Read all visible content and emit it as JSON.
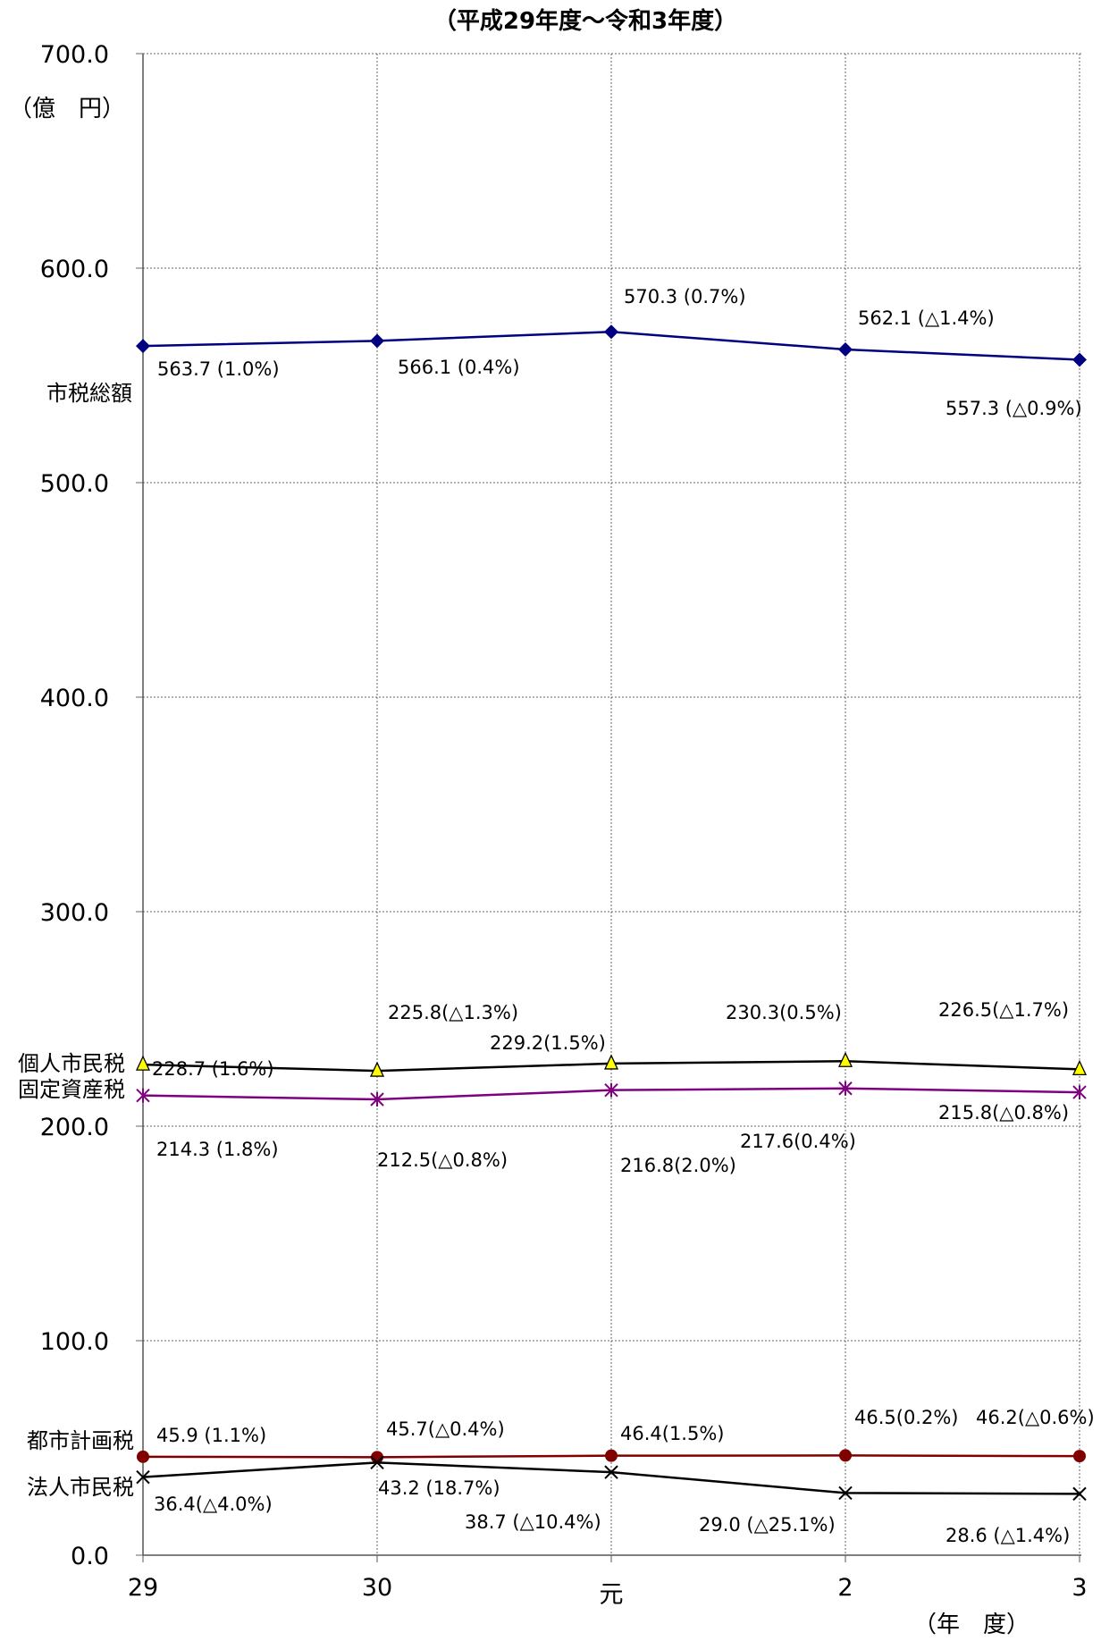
{
  "chart_data": {
    "type": "line",
    "title": "（平成29年度～令和3年度）",
    "y_unit": "（億　円）",
    "x_unit": "（年　度）",
    "ylim": [
      0,
      700
    ],
    "y_ticks": [
      "0.0",
      "100.0",
      "200.0",
      "300.0",
      "400.0",
      "500.0",
      "600.0",
      "700.0"
    ],
    "categories": [
      "29",
      "30",
      "元",
      "2",
      "3"
    ],
    "grid": true,
    "series": [
      {
        "name": "市税総額",
        "color": "#000080",
        "marker": "diamond",
        "values": [
          563.7,
          566.1,
          570.3,
          562.1,
          557.3
        ],
        "labels": [
          "563.7 (1.0%)",
          "566.1 (0.4%)",
          "570.3 (0.7%)",
          "562.1 (△1.4%)",
          "557.3 (△0.9%)"
        ]
      },
      {
        "name": "個人市民税",
        "color": "#000000",
        "marker": "triangle",
        "values": [
          228.7,
          225.8,
          229.2,
          230.3,
          226.5
        ],
        "labels": [
          "228.7 (1.6%)",
          "225.8(△1.3%)",
          "229.2(1.5%)",
          "230.3(0.5%)",
          "226.5(△1.7%)"
        ]
      },
      {
        "name": "固定資産税",
        "color": "#800080",
        "marker": "asterisk",
        "values": [
          214.3,
          212.5,
          216.8,
          217.6,
          215.8
        ],
        "labels": [
          "214.3 (1.8%)",
          "212.5(△0.8%)",
          "216.8(2.0%)",
          "217.6(0.4%)",
          "215.8(△0.8%)"
        ]
      },
      {
        "name": "都市計画税",
        "color": "#800000",
        "marker": "circle",
        "values": [
          45.9,
          45.7,
          46.4,
          46.5,
          46.2
        ],
        "labels": [
          "45.9 (1.1%)",
          "45.7(△0.4%)",
          "46.4(1.5%)",
          "46.5(0.2%)",
          "46.2(△0.6%)"
        ]
      },
      {
        "name": "法人市民税",
        "color": "#000000",
        "marker": "x",
        "values": [
          36.4,
          43.2,
          38.7,
          29.0,
          28.6
        ],
        "labels": [
          "36.4(△4.0%)",
          "43.2 (18.7%)",
          "38.7 (△10.4%)",
          "29.0 (△25.1%)",
          "28.6 (△1.4%)"
        ]
      }
    ]
  }
}
